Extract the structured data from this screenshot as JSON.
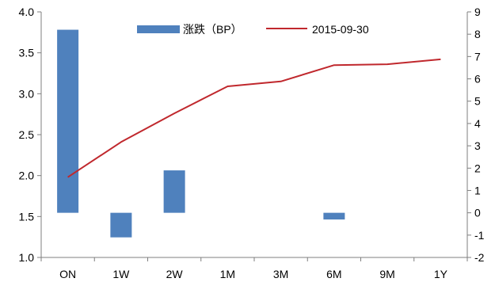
{
  "chart_data": {
    "type": "bar+line",
    "categories": [
      "ON",
      "1W",
      "2W",
      "1M",
      "3M",
      "6M",
      "9M",
      "1Y"
    ],
    "series": [
      {
        "name": "涨跌（BP）",
        "kind": "bar",
        "axis": "right",
        "color": "#4f81bd",
        "values": [
          8.2,
          -1.1,
          1.9,
          0,
          0,
          -0.3,
          0,
          0
        ]
      },
      {
        "name": "2015-09-30",
        "kind": "line",
        "axis": "left",
        "color": "#c0282d",
        "values": [
          1.98,
          2.41,
          2.76,
          3.09,
          3.15,
          3.35,
          3.36,
          3.42
        ]
      }
    ],
    "y_left": {
      "min": 1.0,
      "max": 4.0,
      "step": 0.5,
      "ticks": [
        "1.0",
        "1.5",
        "2.0",
        "2.5",
        "3.0",
        "3.5",
        "4.0"
      ]
    },
    "y_right": {
      "min": -2,
      "max": 9,
      "step": 1,
      "ticks": [
        "-2",
        "-1",
        "0",
        "1",
        "2",
        "3",
        "4",
        "5",
        "6",
        "7",
        "8",
        "9"
      ]
    },
    "legend_placement": "top-center",
    "grid": false,
    "title": "",
    "xlabel": "",
    "ylabel": ""
  }
}
